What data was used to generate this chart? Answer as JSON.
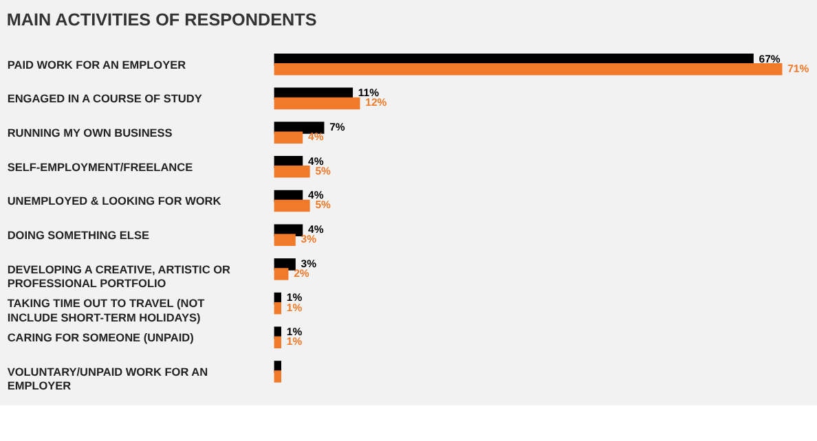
{
  "chart_data": {
    "type": "bar",
    "orientation": "horizontal",
    "title": "MAIN ACTIVITIES OF RESPONDENTS",
    "categories": [
      "PAID WORK FOR AN EMPLOYER",
      "ENGAGED IN A COURSE OF STUDY",
      "RUNNING MY OWN BUSINESS",
      "SELF-EMPLOYMENT/FREELANCE",
      "UNEMPLOYED & LOOKING FOR WORK",
      "DOING SOMETHING ELSE",
      "DEVELOPING A CREATIVE, ARTISTIC OR PROFESSIONAL PORTFOLIO",
      "TAKING TIME OUT TO TRAVEL (NOT INCLUDE SHORT-TERM HOLIDAYS)",
      "CARING FOR SOMEONE (UNPAID)",
      "VOLUNTARY/UNPAID WORK FOR AN EMPLOYER"
    ],
    "series": [
      {
        "color": "#000000",
        "values": [
          67,
          11,
          7,
          4,
          4,
          4,
          3,
          1,
          1,
          1
        ],
        "value_labels": [
          "67%",
          "11%",
          "7%",
          "4%",
          "4%",
          "4%",
          "3%",
          "1%",
          "1%",
          null
        ]
      },
      {
        "color": "#f07a2a",
        "values": [
          71,
          12,
          4,
          5,
          5,
          3,
          2,
          1,
          1,
          1
        ],
        "value_labels": [
          "71%",
          "12%",
          "4%",
          "5%",
          "5%",
          "3%",
          "2%",
          "1%",
          "1%",
          null
        ]
      }
    ],
    "tick_labels": "y",
    "grid": false
  }
}
